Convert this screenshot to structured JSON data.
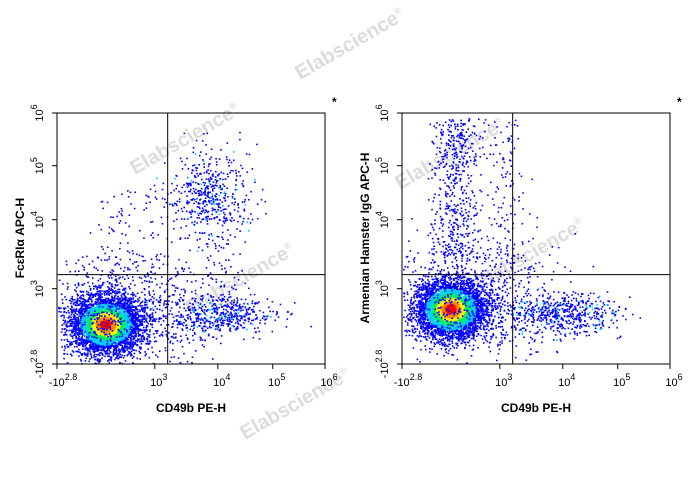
{
  "watermark": {
    "text": "Elabscience",
    "mark": "®"
  },
  "chart_data": [
    {
      "type": "scatter",
      "title": "",
      "xlabel": "CD49b PE-H",
      "ylabel": "FcεRIα APC-H",
      "x_scale": "biexponential",
      "y_scale": "biexponential",
      "x_ticks": [
        {
          "base": "-10",
          "exp": "2.8"
        },
        {
          "base": "10",
          "exp": "3"
        },
        {
          "base": "10",
          "exp": "4"
        },
        {
          "base": "10",
          "exp": "5"
        },
        {
          "base": "10",
          "exp": "6"
        }
      ],
      "y_ticks": [
        {
          "base": "-10",
          "exp": "2.8"
        },
        {
          "base": "10",
          "exp": "3"
        },
        {
          "base": "10",
          "exp": "4"
        },
        {
          "base": "10",
          "exp": "5"
        },
        {
          "base": "10",
          "exp": "6"
        }
      ],
      "quadrant_gate": {
        "x": 1600,
        "y": 1600
      },
      "corner_mark": "*",
      "populations": [
        {
          "name_hidden": "main",
          "x_center": 200,
          "y_center": 200,
          "density": "high"
        },
        {
          "name_hidden": "upper",
          "x_center": 6000,
          "y_center": 30000,
          "density": "low"
        },
        {
          "name_hidden": "right",
          "x_center": 8000,
          "y_center": 400,
          "density": "low"
        }
      ],
      "grid": false,
      "legend": "none"
    },
    {
      "type": "scatter",
      "title": "",
      "xlabel": "CD49b PE-H",
      "ylabel": "Armenian Hamster IgG APC-H",
      "x_scale": "biexponential",
      "y_scale": "biexponential",
      "x_ticks": [
        {
          "base": "-10",
          "exp": "2.8"
        },
        {
          "base": "10",
          "exp": "3"
        },
        {
          "base": "10",
          "exp": "4"
        },
        {
          "base": "10",
          "exp": "5"
        },
        {
          "base": "10",
          "exp": "6"
        }
      ],
      "y_ticks": [
        {
          "base": "-10",
          "exp": "2.8"
        },
        {
          "base": "10",
          "exp": "3"
        },
        {
          "base": "10",
          "exp": "4"
        },
        {
          "base": "10",
          "exp": "5"
        },
        {
          "base": "10",
          "exp": "6"
        }
      ],
      "quadrant_gate": {
        "x": 1600,
        "y": 1600
      },
      "corner_mark": "*",
      "populations": [
        {
          "name_hidden": "main",
          "x_center": 200,
          "y_center": 400,
          "density": "high"
        },
        {
          "name_hidden": "right",
          "x_center": 8000,
          "y_center": 400,
          "density": "low"
        }
      ],
      "grid": false,
      "legend": "none"
    }
  ]
}
